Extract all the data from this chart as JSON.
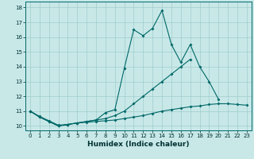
{
  "title": "",
  "xlabel": "Humidex (Indice chaleur)",
  "x_values": [
    0,
    1,
    2,
    3,
    4,
    5,
    6,
    7,
    8,
    9,
    10,
    11,
    12,
    13,
    14,
    15,
    16,
    17,
    18,
    19,
    20,
    21,
    22,
    23
  ],
  "line1": [
    11.0,
    10.6,
    10.3,
    10.0,
    10.1,
    10.2,
    10.3,
    10.4,
    10.9,
    11.1,
    13.9,
    16.5,
    16.1,
    16.6,
    17.8,
    15.5,
    14.3,
    15.5,
    14.0,
    13.0,
    11.8,
    null,
    null,
    null
  ],
  "line2": [
    11.0,
    10.6,
    10.3,
    10.0,
    10.1,
    10.2,
    10.3,
    10.4,
    10.5,
    10.7,
    11.0,
    11.5,
    12.0,
    12.5,
    13.0,
    13.5,
    14.0,
    14.5,
    null,
    null,
    null,
    null,
    null,
    null
  ],
  "line3": [
    11.0,
    10.65,
    10.35,
    10.05,
    10.1,
    10.2,
    10.25,
    10.3,
    10.35,
    10.4,
    10.5,
    10.6,
    10.7,
    10.85,
    11.0,
    11.1,
    11.2,
    11.3,
    11.35,
    11.45,
    11.5,
    11.5,
    11.45,
    11.4
  ],
  "bg_color": "#c8e8e8",
  "grid_color": "#a0cccc",
  "line_color": "#006868",
  "ylim": [
    9.7,
    18.4
  ],
  "xlim": [
    -0.5,
    23.5
  ],
  "yticks": [
    10,
    11,
    12,
    13,
    14,
    15,
    16,
    17,
    18
  ],
  "xticks": [
    0,
    1,
    2,
    3,
    4,
    5,
    6,
    7,
    8,
    9,
    10,
    11,
    12,
    13,
    14,
    15,
    16,
    17,
    18,
    19,
    20,
    21,
    22,
    23
  ],
  "tick_fontsize": 5.0,
  "xlabel_fontsize": 6.5
}
